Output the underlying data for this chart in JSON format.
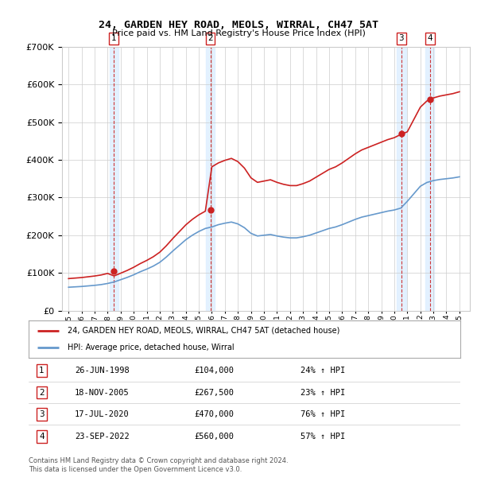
{
  "title": "24, GARDEN HEY ROAD, MEOLS, WIRRAL, CH47 5AT",
  "subtitle": "Price paid vs. HM Land Registry's House Price Index (HPI)",
  "footer_line1": "Contains HM Land Registry data © Crown copyright and database right 2024.",
  "footer_line2": "This data is licensed under the Open Government Licence v3.0.",
  "legend_label_red": "24, GARDEN HEY ROAD, MEOLS, WIRRAL, CH47 5AT (detached house)",
  "legend_label_blue": "HPI: Average price, detached house, Wirral",
  "sales": [
    {
      "num": 1,
      "date": "26-JUN-1998",
      "price": 104000,
      "pct": "24%",
      "x_year": 1998.49
    },
    {
      "num": 2,
      "date": "18-NOV-2005",
      "price": 267500,
      "pct": "23%",
      "x_year": 2005.88
    },
    {
      "num": 3,
      "date": "17-JUL-2020",
      "price": 470000,
      "pct": "76%",
      "x_year": 2020.54
    },
    {
      "num": 4,
      "date": "23-SEP-2022",
      "price": 560000,
      "pct": "57%",
      "x_year": 2022.73
    }
  ],
  "hpi_color": "#6699cc",
  "price_color": "#cc2222",
  "background_color": "#ddeeff",
  "plot_bg": "#ffffff",
  "grid_color": "#cccccc",
  "vline_color": "#cc2222",
  "ylim": [
    0,
    700000
  ],
  "xlim_start": 1994.5,
  "xlim_end": 2025.8
}
